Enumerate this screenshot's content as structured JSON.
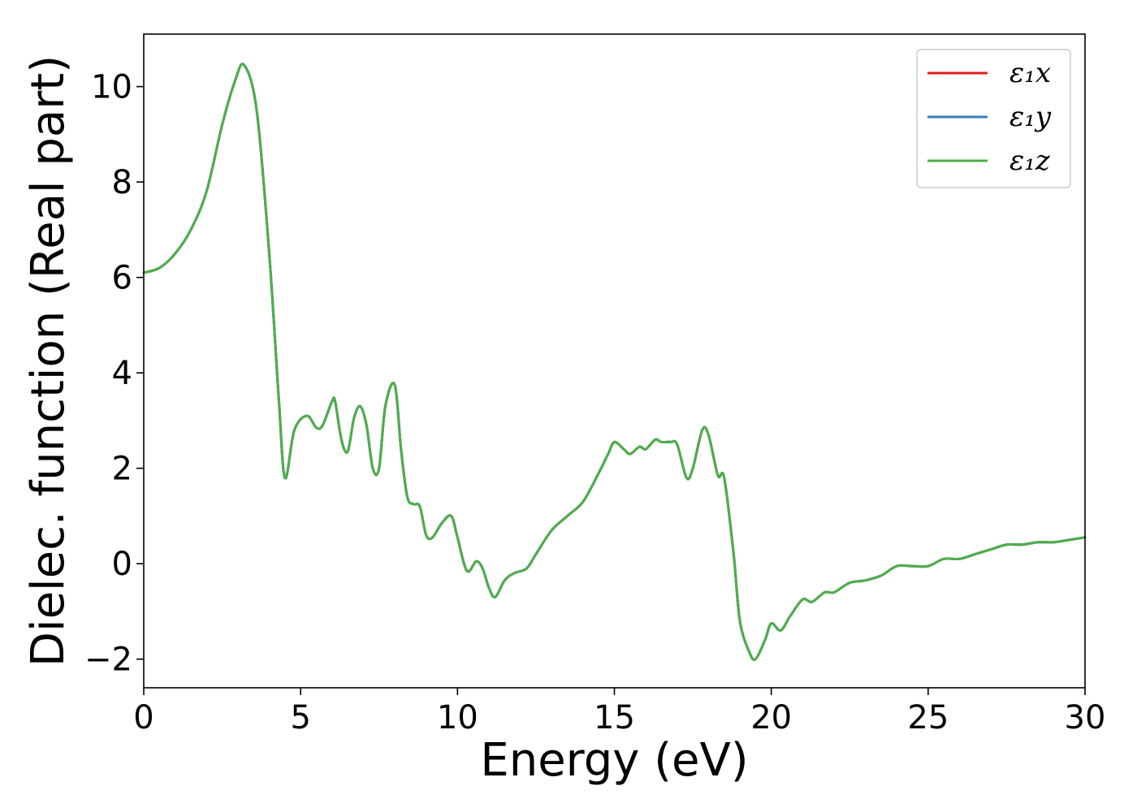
{
  "chart_data": {
    "type": "line",
    "title": "",
    "xlabel": "Energy (eV)",
    "ylabel": "Dielec. function (Real part)",
    "xlim": [
      0,
      30
    ],
    "ylim": [
      -2.6,
      11.1
    ],
    "xticks": [
      0,
      5,
      10,
      15,
      20,
      25,
      30
    ],
    "yticks": [
      -2,
      0,
      2,
      4,
      6,
      8,
      10
    ],
    "xtick_labels": [
      "0",
      "5",
      "10",
      "15",
      "20",
      "25",
      "30"
    ],
    "ytick_labels": [
      "−2",
      "0",
      "2",
      "4",
      "6",
      "8",
      "10"
    ],
    "grid": false,
    "legend_position": "top-right",
    "x": [
      0,
      0.5,
      1.0,
      1.5,
      2.0,
      2.5,
      2.9,
      3.2,
      3.6,
      4.0,
      4.3,
      4.5,
      4.8,
      5.2,
      5.5,
      5.7,
      6.0,
      6.1,
      6.3,
      6.5,
      6.7,
      6.9,
      7.1,
      7.3,
      7.5,
      7.7,
      8.0,
      8.2,
      8.4,
      8.6,
      8.8,
      9.0,
      9.2,
      9.5,
      9.8,
      10.0,
      10.3,
      10.6,
      10.8,
      11.0,
      11.2,
      11.5,
      11.8,
      12.2,
      12.5,
      13.0,
      13.5,
      14.0,
      14.5,
      14.8,
      15.0,
      15.3,
      15.5,
      15.8,
      16.0,
      16.3,
      16.5,
      16.8,
      17.0,
      17.3,
      17.5,
      17.8,
      18.0,
      18.3,
      18.5,
      18.8,
      19.0,
      19.3,
      19.5,
      19.8,
      20.0,
      20.3,
      20.6,
      21.0,
      21.3,
      21.7,
      22.0,
      22.5,
      23.0,
      23.5,
      24.0,
      24.5,
      25.0,
      25.5,
      26.0,
      26.5,
      27.0,
      27.5,
      28.0,
      28.5,
      29.0,
      29.5,
      30.0
    ],
    "series": [
      {
        "name": "ε₁x",
        "color": "#e41a1c",
        "values": [
          6.1,
          6.2,
          6.5,
          7.0,
          7.8,
          9.2,
          10.1,
          10.45,
          9.5,
          6.5,
          3.5,
          1.8,
          2.8,
          3.1,
          2.85,
          2.9,
          3.4,
          3.4,
          2.6,
          2.35,
          3.05,
          3.3,
          2.9,
          2.0,
          2.0,
          3.3,
          3.75,
          2.4,
          1.4,
          1.25,
          1.2,
          0.6,
          0.55,
          0.85,
          1.0,
          0.55,
          -0.15,
          0.05,
          -0.1,
          -0.5,
          -0.7,
          -0.35,
          -0.2,
          -0.1,
          0.2,
          0.7,
          1.0,
          1.3,
          1.9,
          2.3,
          2.55,
          2.4,
          2.3,
          2.45,
          2.4,
          2.6,
          2.55,
          2.55,
          2.5,
          1.8,
          2.0,
          2.8,
          2.7,
          1.85,
          1.8,
          0.2,
          -1.2,
          -1.85,
          -2.0,
          -1.6,
          -1.25,
          -1.4,
          -1.1,
          -0.75,
          -0.8,
          -0.6,
          -0.6,
          -0.4,
          -0.35,
          -0.25,
          -0.05,
          -0.05,
          -0.05,
          0.1,
          0.1,
          0.2,
          0.3,
          0.4,
          0.4,
          0.45,
          0.45,
          0.5,
          0.55
        ]
      },
      {
        "name": "ε₁y",
        "color": "#377eb8",
        "values": [
          6.1,
          6.2,
          6.5,
          7.0,
          7.8,
          9.2,
          10.1,
          10.45,
          9.5,
          6.5,
          3.5,
          1.8,
          2.8,
          3.1,
          2.85,
          2.9,
          3.4,
          3.4,
          2.6,
          2.35,
          3.05,
          3.3,
          2.9,
          2.0,
          2.0,
          3.3,
          3.75,
          2.4,
          1.4,
          1.25,
          1.2,
          0.6,
          0.55,
          0.85,
          1.0,
          0.55,
          -0.15,
          0.05,
          -0.1,
          -0.5,
          -0.7,
          -0.35,
          -0.2,
          -0.1,
          0.2,
          0.7,
          1.0,
          1.3,
          1.9,
          2.3,
          2.55,
          2.4,
          2.3,
          2.45,
          2.4,
          2.6,
          2.55,
          2.55,
          2.5,
          1.8,
          2.0,
          2.8,
          2.7,
          1.85,
          1.8,
          0.2,
          -1.2,
          -1.85,
          -2.0,
          -1.6,
          -1.25,
          -1.4,
          -1.1,
          -0.75,
          -0.8,
          -0.6,
          -0.6,
          -0.4,
          -0.35,
          -0.25,
          -0.05,
          -0.05,
          -0.05,
          0.1,
          0.1,
          0.2,
          0.3,
          0.4,
          0.4,
          0.45,
          0.45,
          0.5,
          0.55
        ]
      },
      {
        "name": "ε₁z",
        "color": "#4daf4a",
        "values": [
          6.1,
          6.2,
          6.5,
          7.0,
          7.8,
          9.2,
          10.1,
          10.45,
          9.5,
          6.5,
          3.5,
          1.8,
          2.8,
          3.1,
          2.85,
          2.9,
          3.4,
          3.4,
          2.6,
          2.35,
          3.05,
          3.3,
          2.9,
          2.0,
          2.0,
          3.3,
          3.75,
          2.4,
          1.4,
          1.25,
          1.2,
          0.6,
          0.55,
          0.85,
          1.0,
          0.55,
          -0.15,
          0.05,
          -0.1,
          -0.5,
          -0.7,
          -0.35,
          -0.2,
          -0.1,
          0.2,
          0.7,
          1.0,
          1.3,
          1.9,
          2.3,
          2.55,
          2.4,
          2.3,
          2.45,
          2.4,
          2.6,
          2.55,
          2.55,
          2.5,
          1.8,
          2.0,
          2.8,
          2.7,
          1.85,
          1.8,
          0.2,
          -1.2,
          -1.85,
          -2.0,
          -1.6,
          -1.25,
          -1.4,
          -1.1,
          -0.75,
          -0.8,
          -0.6,
          -0.6,
          -0.4,
          -0.35,
          -0.25,
          -0.05,
          -0.05,
          -0.05,
          0.1,
          0.1,
          0.2,
          0.3,
          0.4,
          0.4,
          0.45,
          0.45,
          0.5,
          0.55
        ]
      }
    ]
  }
}
